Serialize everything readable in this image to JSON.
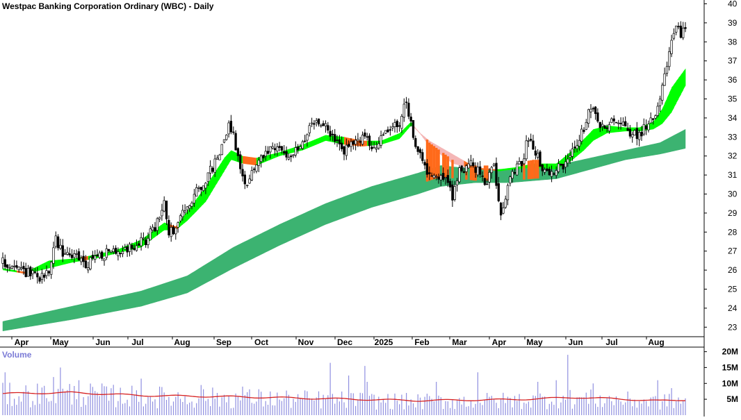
{
  "chart_title": "Westpac Banking Corporation Ordinary (WBC) - Daily",
  "volume_label": "Volume",
  "colors": {
    "up_candle": "#ffffff",
    "down_candle": "#000000",
    "short_ribbon_bull": "#00ff00",
    "short_ribbon_bear": "#ff6a1a",
    "short_ribbon_fade": "#f4b6b6",
    "long_ribbon": "#3cb371",
    "volume_bar": "#8f8fe0",
    "volume_ma": "#d62020",
    "axis": "#000000"
  },
  "chart_data": [
    {
      "type": "candlestick",
      "title": "Westpac Banking Corporation Ordinary (WBC) - Daily",
      "x_tick_labels": [
        "Apr",
        "May",
        "Jun",
        "Jul",
        "Aug",
        "Sep",
        "Oct",
        "Nov",
        "Dec",
        "2025",
        "Feb",
        "Mar",
        "Apr",
        "May",
        "Jun",
        "Jul",
        "Aug"
      ],
      "y_tick_labels": [
        "40",
        "39",
        "38",
        "37",
        "36",
        "35",
        "34",
        "33",
        "32",
        "31",
        "30",
        "29",
        "28",
        "27",
        "26",
        "25",
        "24",
        "23"
      ],
      "ylim": [
        22.5,
        40.2
      ],
      "close_anchors": [
        [
          0,
          26.4
        ],
        [
          6,
          26.0
        ],
        [
          12,
          25.8
        ],
        [
          16,
          25.5
        ],
        [
          20,
          26.0
        ],
        [
          23,
          27.6
        ],
        [
          26,
          26.9
        ],
        [
          32,
          26.7
        ],
        [
          36,
          26.3
        ],
        [
          40,
          26.7
        ],
        [
          46,
          26.9
        ],
        [
          52,
          27.1
        ],
        [
          58,
          27.3
        ],
        [
          62,
          27.6
        ],
        [
          66,
          28.2
        ],
        [
          70,
          29.5
        ],
        [
          72,
          27.9
        ],
        [
          75,
          28.2
        ],
        [
          80,
          29.5
        ],
        [
          86,
          30.4
        ],
        [
          92,
          31.6
        ],
        [
          96,
          33.0
        ],
        [
          98,
          33.6
        ],
        [
          100,
          33.2
        ],
        [
          103,
          31.2
        ],
        [
          106,
          30.6
        ],
        [
          110,
          31.5
        ],
        [
          115,
          32.2
        ],
        [
          120,
          32.4
        ],
        [
          124,
          32.0
        ],
        [
          128,
          32.3
        ],
        [
          132,
          33.2
        ],
        [
          136,
          33.8
        ],
        [
          140,
          33.5
        ],
        [
          144,
          32.8
        ],
        [
          148,
          32.3
        ],
        [
          152,
          32.6
        ],
        [
          156,
          33.1
        ],
        [
          160,
          32.4
        ],
        [
          164,
          32.8
        ],
        [
          168,
          33.5
        ],
        [
          172,
          33.8
        ],
        [
          175,
          34.8
        ],
        [
          177,
          33.7
        ],
        [
          180,
          32.2
        ],
        [
          184,
          31.2
        ],
        [
          188,
          31.0
        ],
        [
          192,
          30.8
        ],
        [
          195,
          29.9
        ],
        [
          198,
          31.2
        ],
        [
          202,
          31.6
        ],
        [
          206,
          31.2
        ],
        [
          210,
          30.6
        ],
        [
          213,
          31.5
        ],
        [
          216,
          29.1
        ],
        [
          219,
          30.4
        ],
        [
          222,
          31.2
        ],
        [
          225,
          31.6
        ],
        [
          228,
          33.0
        ],
        [
          231,
          32.3
        ],
        [
          234,
          31.4
        ],
        [
          237,
          31.0
        ],
        [
          240,
          31.3
        ],
        [
          244,
          31.5
        ],
        [
          248,
          32.6
        ],
        [
          252,
          33.4
        ],
        [
          255,
          34.6
        ],
        [
          258,
          33.7
        ],
        [
          262,
          33.5
        ],
        [
          266,
          34.0
        ],
        [
          270,
          33.4
        ],
        [
          274,
          33.1
        ],
        [
          278,
          33.4
        ],
        [
          281,
          33.9
        ],
        [
          284,
          34.6
        ],
        [
          287,
          36.4
        ],
        [
          290,
          37.9
        ],
        [
          292,
          38.8
        ],
        [
          294,
          38.3
        ],
        [
          296,
          38.9
        ]
      ],
      "short_ribbon_anchors": [
        [
          0,
          26.1,
          26.0
        ],
        [
          10,
          25.9,
          25.8
        ],
        [
          20,
          26.5,
          26.1
        ],
        [
          30,
          26.6,
          26.4
        ],
        [
          40,
          26.8,
          26.6
        ],
        [
          50,
          27.1,
          26.9
        ],
        [
          60,
          27.6,
          27.2
        ],
        [
          70,
          28.5,
          28.1
        ],
        [
          75,
          28.3,
          28.1
        ],
        [
          80,
          29.1,
          28.6
        ],
        [
          88,
          30.4,
          29.6
        ],
        [
          96,
          31.9,
          31.2
        ],
        [
          99,
          32.3,
          31.8
        ],
        [
          104,
          32.0,
          31.6
        ],
        [
          110,
          31.9,
          31.5
        ],
        [
          120,
          32.2,
          32.0
        ],
        [
          130,
          32.6,
          32.3
        ],
        [
          140,
          33.1,
          32.8
        ],
        [
          148,
          33.0,
          32.6
        ],
        [
          156,
          32.8,
          32.5
        ],
        [
          164,
          32.8,
          32.6
        ],
        [
          172,
          33.2,
          32.9
        ],
        [
          177,
          33.8,
          33.6
        ],
        [
          185,
          32.5,
          32.8
        ],
        [
          195,
          31.6,
          32.1
        ],
        [
          205,
          31.3,
          31.4
        ],
        [
          215,
          31.3,
          31.2
        ],
        [
          222,
          31.4,
          31.3
        ],
        [
          230,
          31.6,
          31.4
        ],
        [
          240,
          31.6,
          31.3
        ],
        [
          246,
          32.2,
          31.7
        ],
        [
          252,
          32.9,
          32.3
        ],
        [
          256,
          33.4,
          32.8
        ],
        [
          262,
          33.6,
          33.2
        ],
        [
          270,
          33.5,
          33.3
        ],
        [
          276,
          33.5,
          33.3
        ],
        [
          282,
          33.8,
          33.4
        ],
        [
          286,
          34.5,
          33.7
        ],
        [
          290,
          35.6,
          34.3
        ],
        [
          296,
          36.6,
          35.7
        ]
      ],
      "long_ribbon_anchors": [
        [
          0,
          23.3,
          22.8
        ],
        [
          30,
          24.1,
          23.4
        ],
        [
          60,
          24.9,
          24.1
        ],
        [
          80,
          25.7,
          24.8
        ],
        [
          100,
          27.2,
          26.1
        ],
        [
          120,
          28.4,
          27.3
        ],
        [
          140,
          29.5,
          28.4
        ],
        [
          160,
          30.4,
          29.3
        ],
        [
          180,
          31.1,
          30.0
        ],
        [
          190,
          31.5,
          30.4
        ],
        [
          205,
          31.3,
          30.6
        ],
        [
          220,
          31.3,
          30.6
        ],
        [
          240,
          31.5,
          30.8
        ],
        [
          255,
          31.9,
          31.3
        ],
        [
          270,
          32.3,
          31.8
        ],
        [
          285,
          32.7,
          32.1
        ],
        [
          296,
          33.4,
          32.4
        ]
      ],
      "bearish_short_segments": [
        [
          6,
          10
        ],
        [
          34,
          37
        ],
        [
          72,
          76
        ],
        [
          104,
          110
        ],
        [
          148,
          158
        ],
        [
          178,
          214
        ]
      ],
      "bearish_fade_segment": [
        178,
        200
      ]
    },
    {
      "type": "bar",
      "title": "Volume",
      "y_tick_labels": [
        "20M",
        "15M",
        "10M",
        "5M"
      ],
      "ylim": [
        0,
        21
      ],
      "volume_ma_anchors": [
        [
          0,
          6.8
        ],
        [
          30,
          7.1
        ],
        [
          60,
          6.2
        ],
        [
          100,
          5.8
        ],
        [
          140,
          5.2
        ],
        [
          180,
          4.6
        ],
        [
          220,
          4.9
        ],
        [
          250,
          5.6
        ],
        [
          270,
          5.0
        ],
        [
          285,
          4.5
        ],
        [
          296,
          4.8
        ]
      ],
      "volume_spikes": [
        [
          1,
          13.5
        ],
        [
          22,
          12.0
        ],
        [
          25,
          15.0
        ],
        [
          33,
          11.0
        ],
        [
          60,
          11.5
        ],
        [
          86,
          9.5
        ],
        [
          104,
          9.0
        ],
        [
          142,
          16.5
        ],
        [
          150,
          12.5
        ],
        [
          157,
          15.5
        ],
        [
          158,
          10.5
        ],
        [
          188,
          10.5
        ],
        [
          206,
          13.5
        ],
        [
          232,
          10.5
        ],
        [
          240,
          11.0
        ],
        [
          245,
          19.0
        ],
        [
          256,
          10.0
        ],
        [
          284,
          11.0
        ],
        [
          290,
          8.5
        ]
      ]
    }
  ]
}
